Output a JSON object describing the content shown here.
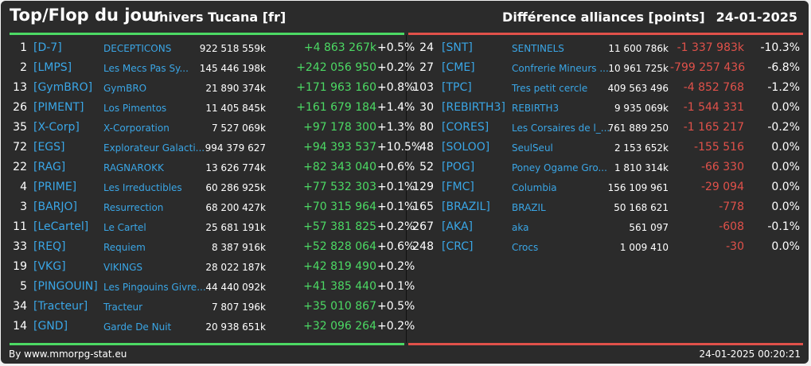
{
  "header": {
    "title": "Top/Flop du jour",
    "universe": "Univers Tucana [fr]",
    "metric": "Différence alliances [points]",
    "date": "24-01-2025"
  },
  "colors": {
    "background": "#2b2b2b",
    "gain": "#4cd964",
    "loss": "#e0514a",
    "link": "#3aa6e6",
    "text": "#ffffff"
  },
  "top": [
    {
      "rank": "1",
      "tag": "[D-7]",
      "name": "DECEPTICONS",
      "points": "922 518 559k",
      "diff": "+4 863 267k",
      "pct": "+0.5%"
    },
    {
      "rank": "2",
      "tag": "[LMPS]",
      "name": "Les Mecs Pas Sy...",
      "points": "145 446 198k",
      "diff": "+242 056 950",
      "pct": "+0.2%"
    },
    {
      "rank": "13",
      "tag": "[GymBRO]",
      "name": "GymBRO",
      "points": "21 890 374k",
      "diff": "+171 963 160",
      "pct": "+0.8%"
    },
    {
      "rank": "26",
      "tag": "[PIMENT]",
      "name": "Los Pimentos",
      "points": "11 405 845k",
      "diff": "+161 679 184",
      "pct": "+1.4%"
    },
    {
      "rank": "35",
      "tag": "[X-Corp]",
      "name": "X-Corporation",
      "points": "7 527 069k",
      "diff": "+97 178 300",
      "pct": "+1.3%"
    },
    {
      "rank": "72",
      "tag": "[EGS]",
      "name": "Explorateur Galacti...",
      "points": "994 379 627",
      "diff": "+94 393 537",
      "pct": "+10.5%"
    },
    {
      "rank": "22",
      "tag": "[RAG]",
      "name": "RAGNAROKK",
      "points": "13 626 774k",
      "diff": "+82 343 040",
      "pct": "+0.6%"
    },
    {
      "rank": "4",
      "tag": "[PRIME]",
      "name": "Les Irreductibles",
      "points": "60 286 925k",
      "diff": "+77 532 303",
      "pct": "+0.1%"
    },
    {
      "rank": "3",
      "tag": "[BARJO]",
      "name": "Resurrection",
      "points": "68 200 427k",
      "diff": "+70 315 964",
      "pct": "+0.1%"
    },
    {
      "rank": "11",
      "tag": "[LeCartel]",
      "name": "Le Cartel",
      "points": "25 681 191k",
      "diff": "+57 381 825",
      "pct": "+0.2%"
    },
    {
      "rank": "33",
      "tag": "[REQ]",
      "name": "Requiem",
      "points": "8 387 916k",
      "diff": "+52 828 064",
      "pct": "+0.6%"
    },
    {
      "rank": "19",
      "tag": "[VKG]",
      "name": "VIKINGS",
      "points": "28 022 187k",
      "diff": "+42 819 490",
      "pct": "+0.2%"
    },
    {
      "rank": "5",
      "tag": "[PINGOUIN]",
      "name": "Les Pingouins Givre...",
      "points": "44 440 092k",
      "diff": "+41 385 440",
      "pct": "+0.1%"
    },
    {
      "rank": "34",
      "tag": "[Tracteur]",
      "name": "Tracteur",
      "points": "7 807 196k",
      "diff": "+35 010 867",
      "pct": "+0.5%"
    },
    {
      "rank": "14",
      "tag": "[GND]",
      "name": "Garde De Nuit",
      "points": "20 938 651k",
      "diff": "+32 096 264",
      "pct": "+0.2%"
    }
  ],
  "flop": [
    {
      "rank": "24",
      "tag": "[SNT]",
      "name": "SENTINELS",
      "points": "11 600 786k",
      "diff": "-1 337 983k",
      "pct": "-10.3%"
    },
    {
      "rank": "27",
      "tag": "[CME]",
      "name": "Confrerie Mineurs ...",
      "points": "10 961 725k",
      "diff": "-799 257 436",
      "pct": "-6.8%"
    },
    {
      "rank": "103",
      "tag": "[TPC]",
      "name": "Tres petit cercle",
      "points": "409 563 496",
      "diff": "-4 852 768",
      "pct": "-1.2%"
    },
    {
      "rank": "30",
      "tag": "[REBIRTH3]",
      "name": "REBIRTH3",
      "points": "9 935 069k",
      "diff": "-1 544 331",
      "pct": "0.0%"
    },
    {
      "rank": "80",
      "tag": "[CORES]",
      "name": "Les Corsaires de l_...",
      "points": "761 889 250",
      "diff": "-1 165 217",
      "pct": "-0.2%"
    },
    {
      "rank": "48",
      "tag": "[SOLOO]",
      "name": "SeulSeul",
      "points": "2 153 652k",
      "diff": "-155 516",
      "pct": "0.0%"
    },
    {
      "rank": "52",
      "tag": "[POG]",
      "name": "Poney Ogame Gro...",
      "points": "1 810 314k",
      "diff": "-66 330",
      "pct": "0.0%"
    },
    {
      "rank": "129",
      "tag": "[FMC]",
      "name": "Columbia",
      "points": "156 109 961",
      "diff": "-29 094",
      "pct": "0.0%"
    },
    {
      "rank": "165",
      "tag": "[BRAZIL]",
      "name": "BRAZIL",
      "points": "50 168 621",
      "diff": "-778",
      "pct": "0.0%"
    },
    {
      "rank": "267",
      "tag": "[AKA]",
      "name": "aka",
      "points": "561 097",
      "diff": "-608",
      "pct": "-0.1%"
    },
    {
      "rank": "248",
      "tag": "[CRC]",
      "name": "Crocs",
      "points": "1 009 410",
      "diff": "-30",
      "pct": "0.0%"
    }
  ],
  "footer": {
    "source": "By www.mmorpg-stat.eu",
    "timestamp": "24-01-2025 00:20:21"
  }
}
